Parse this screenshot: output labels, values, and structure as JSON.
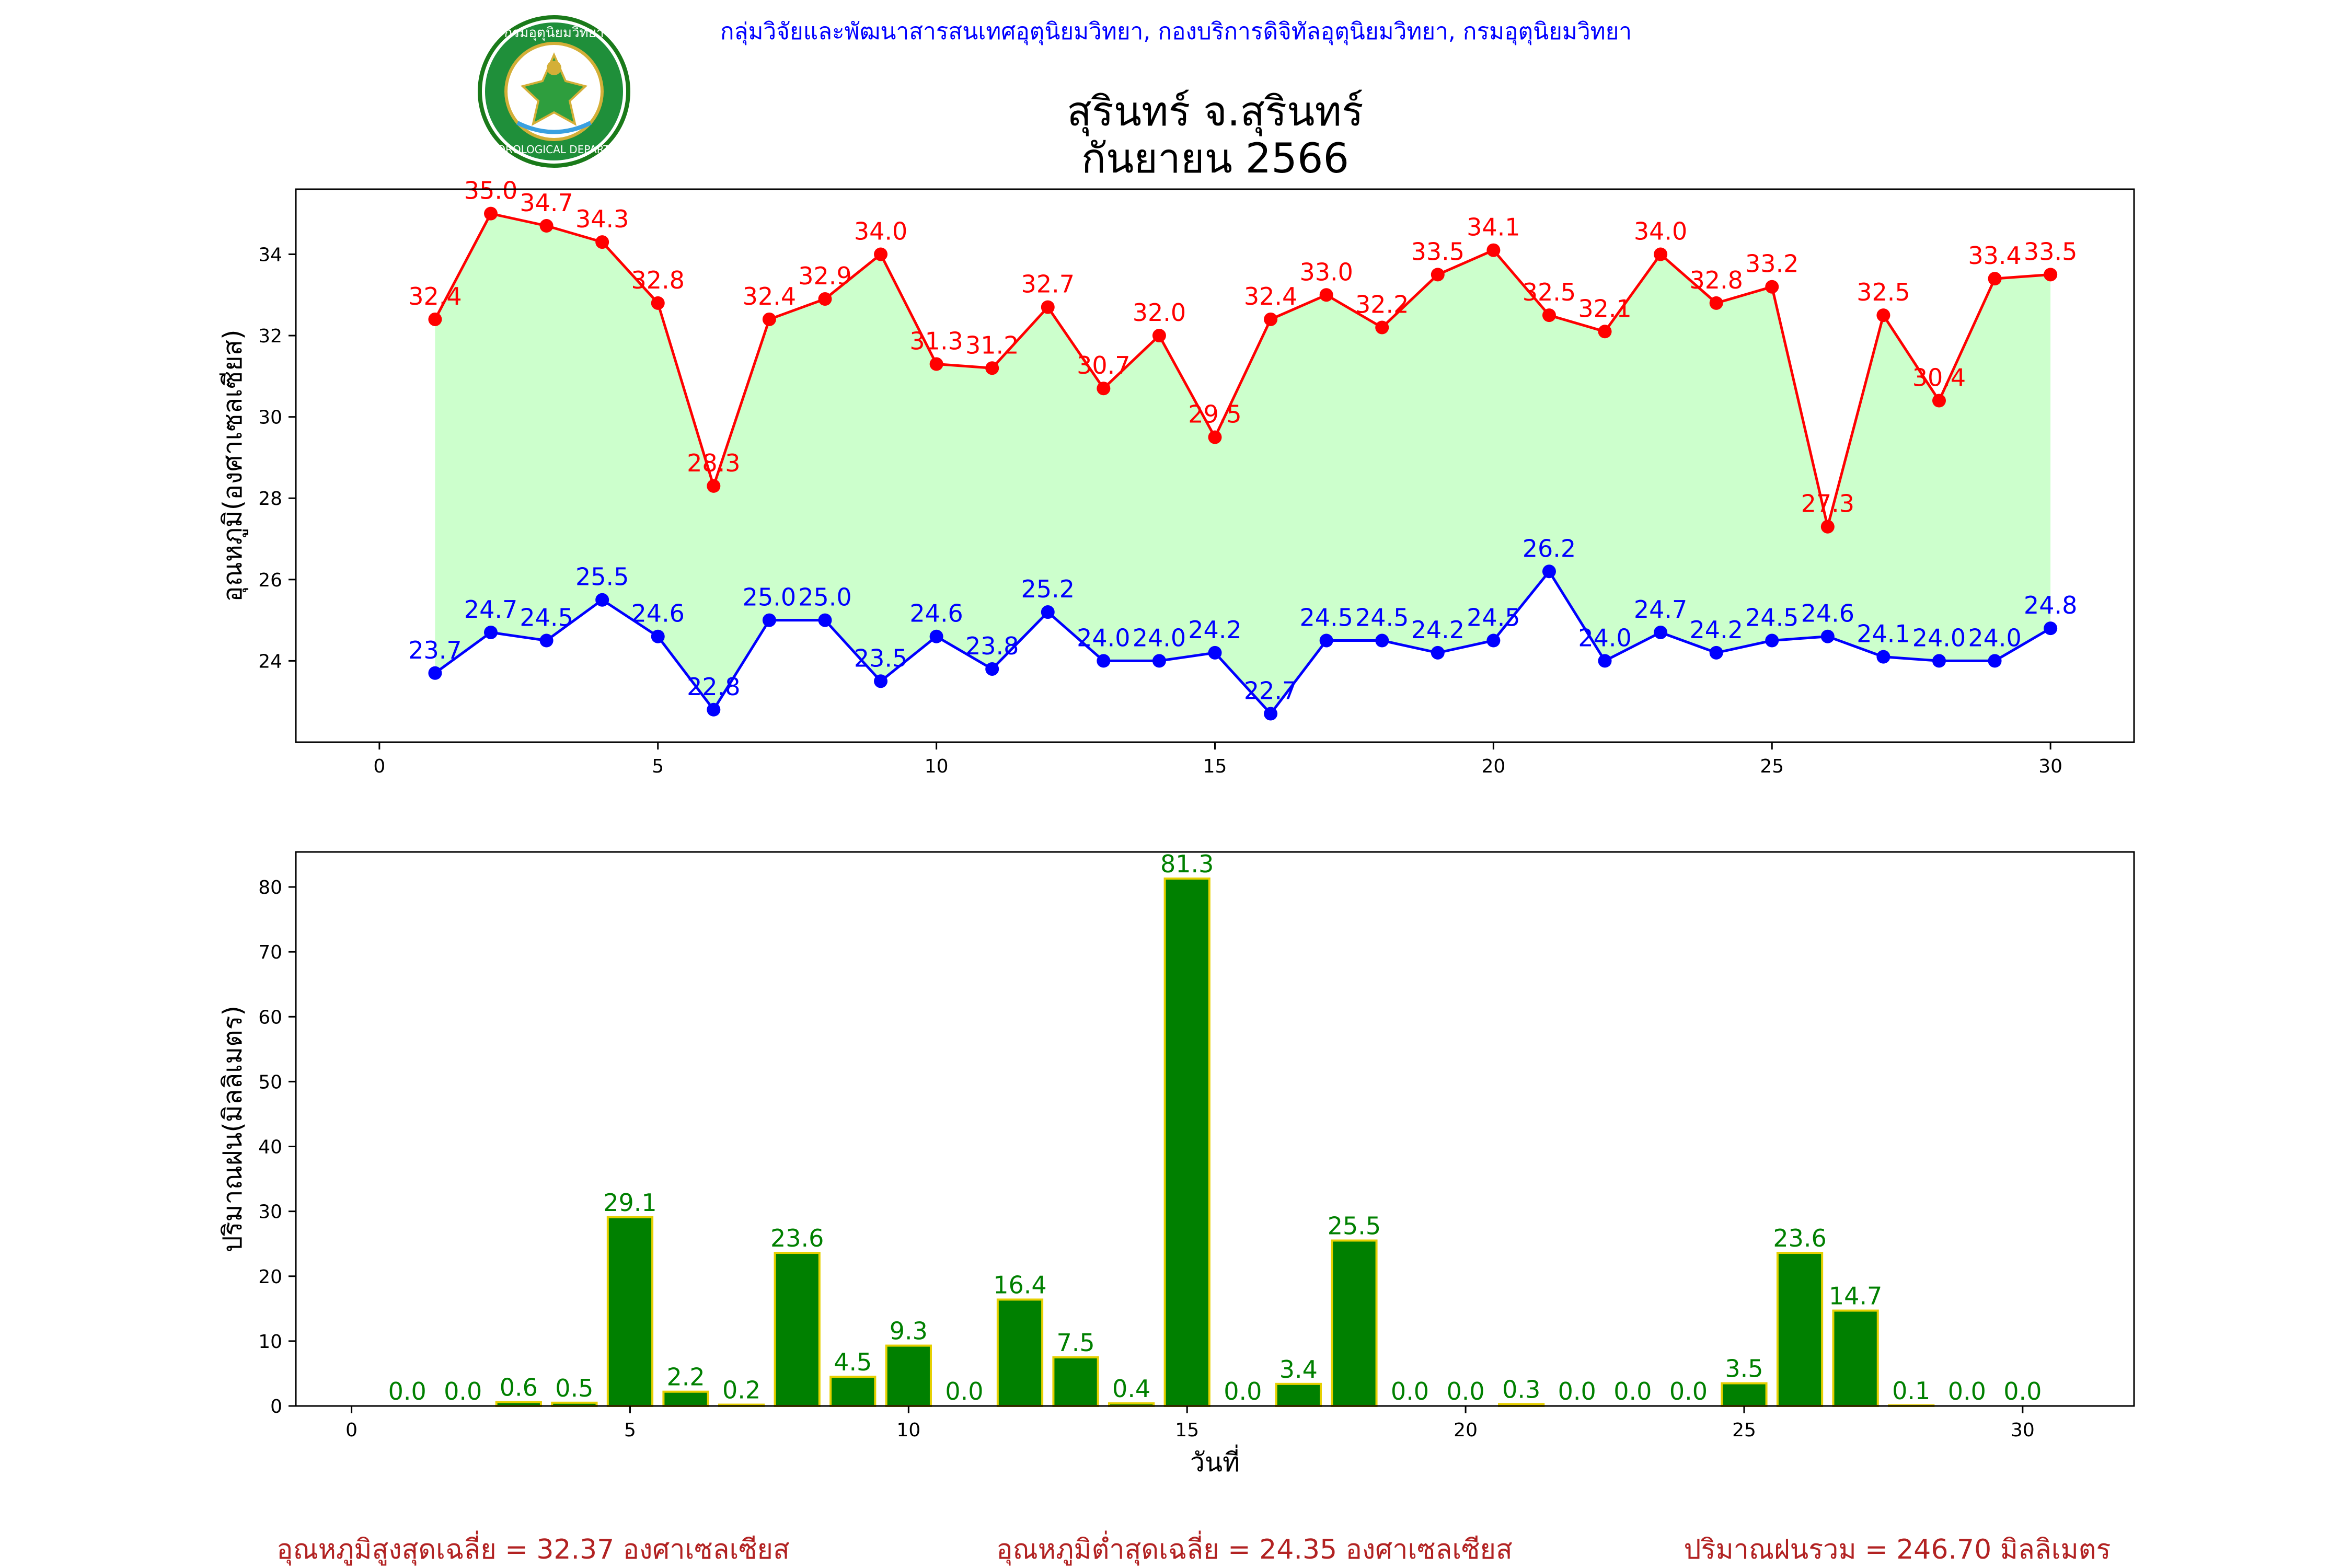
{
  "header": {
    "org_line": "กลุ่มวิจัยและพัฒนาสารสนเทศอุตุนิยมวิทยา, กองบริการดิจิทัลอุตุนิยมวิทยา, กรมอุตุนิยมวิทยา",
    "org_color": "#0000ff",
    "logo_text": "METEOROLOGICAL DEPARTMENT",
    "logo_top_text": "กรมอุตุนิยมวิทยา"
  },
  "title": {
    "line1": "สุรินทร์ จ.สุรินทร์",
    "line2": "กันยายน 2566"
  },
  "chart_data": [
    {
      "type": "line",
      "ylabel": "อุณหภูมิ(องศาเซลเซียส)",
      "xlim": [
        -1.5,
        31.5
      ],
      "ylim": [
        22.0,
        35.6
      ],
      "xticks": [
        0,
        5,
        10,
        15,
        20,
        25,
        30
      ],
      "yticks": [
        24,
        26,
        28,
        30,
        32,
        34
      ],
      "fill_between": {
        "color": "#ccffcc"
      },
      "x": [
        1,
        2,
        3,
        4,
        5,
        6,
        7,
        8,
        9,
        10,
        11,
        12,
        13,
        14,
        15,
        16,
        17,
        18,
        19,
        20,
        21,
        22,
        23,
        24,
        25,
        26,
        27,
        28,
        29,
        30
      ],
      "series": [
        {
          "color": "#ff0000",
          "values": [
            32.4,
            35.0,
            34.7,
            34.3,
            32.8,
            28.3,
            32.4,
            32.9,
            34.0,
            31.3,
            31.2,
            32.7,
            30.7,
            32.0,
            29.5,
            32.4,
            33.0,
            32.2,
            33.5,
            34.1,
            32.5,
            32.1,
            34.0,
            32.8,
            33.2,
            27.3,
            32.5,
            30.4,
            33.4,
            33.5
          ],
          "labels": [
            "32.4",
            "35.0",
            "34.7",
            "34.3",
            "32.8",
            "28.3",
            "32.4",
            "32.9",
            "34.0",
            "31.3",
            "31.2",
            "32.7",
            "30.7",
            "32.0",
            "29.5",
            "32.4",
            "33.0",
            "32.2",
            "33.5",
            "34.1",
            "32.5",
            "32.1",
            "34.0",
            "32.8",
            "33.2",
            "27.3",
            "32.5",
            "30.4",
            "33.4",
            "33.5"
          ]
        },
        {
          "color": "#0000ff",
          "values": [
            23.7,
            24.7,
            24.5,
            25.5,
            24.6,
            22.8,
            25.0,
            25.0,
            23.5,
            24.6,
            23.8,
            25.2,
            24.0,
            24.0,
            24.2,
            22.7,
            24.5,
            24.5,
            24.2,
            24.5,
            26.2,
            24.0,
            24.7,
            24.2,
            24.5,
            24.6,
            24.1,
            24.0,
            24.0,
            24.8
          ],
          "labels": [
            "23.7",
            "24.7",
            "24.5",
            "25.5",
            "24.6",
            "22.8",
            "25.0",
            "25.0",
            "23.5",
            "24.6",
            "23.8",
            "25.2",
            "24.0",
            "24.0",
            "24.2",
            "22.7",
            "24.5",
            "24.5",
            "24.2",
            "24.5",
            "26.2",
            "24.0",
            "24.7",
            "24.2",
            "24.5",
            "24.6",
            "24.1",
            "24.0",
            "24.0",
            "24.8"
          ]
        }
      ]
    },
    {
      "type": "bar",
      "xlabel": "วันที่",
      "ylabel": "ปริมาณฝน(มิลลิเมตร)",
      "xlim": [
        -1,
        32
      ],
      "ylim": [
        0,
        85.4
      ],
      "xticks": [
        0,
        5,
        10,
        15,
        20,
        25,
        30
      ],
      "yticks": [
        0,
        10,
        20,
        30,
        40,
        50,
        60,
        70,
        80
      ],
      "bar_color": "#008000",
      "edge_color": "#e6d000",
      "label_color": "#008000",
      "x": [
        1,
        2,
        3,
        4,
        5,
        6,
        7,
        8,
        9,
        10,
        11,
        12,
        13,
        14,
        15,
        16,
        17,
        18,
        19,
        20,
        21,
        22,
        23,
        24,
        25,
        26,
        27,
        28,
        29,
        30
      ],
      "values": [
        0.0,
        0.0,
        0.6,
        0.5,
        29.1,
        2.2,
        0.2,
        23.6,
        4.5,
        9.3,
        0.0,
        16.4,
        7.5,
        0.4,
        81.3,
        0.0,
        3.4,
        25.5,
        0.0,
        0.0,
        0.3,
        0.0,
        0.0,
        0.0,
        3.5,
        23.6,
        14.7,
        0.1,
        0.0,
        0.0
      ],
      "labels": [
        "0.0",
        "0.0",
        "0.6",
        "0.5",
        "29.1",
        "2.2",
        "0.2",
        "23.6",
        "4.5",
        "9.3",
        "0.0",
        "16.4",
        "7.5",
        "0.4",
        "81.3",
        "0.0",
        "3.4",
        "25.5",
        "0.0",
        "0.0",
        "0.3",
        "0.0",
        "0.0",
        "0.0",
        "3.5",
        "23.6",
        "14.7",
        "0.1",
        "0.0",
        "0.0"
      ]
    }
  ],
  "footer": {
    "color": "#b22222",
    "avg_max": "อุณหภูมิสูงสุดเฉลี่ย = 32.37 องศาเซลเซียส",
    "avg_min": "อุณหภูมิต่ำสุดเฉลี่ย = 24.35 องศาเซลเซียส",
    "total_rain": "ปริมาณฝนรวม = 246.70 มิลลิเมตร"
  }
}
